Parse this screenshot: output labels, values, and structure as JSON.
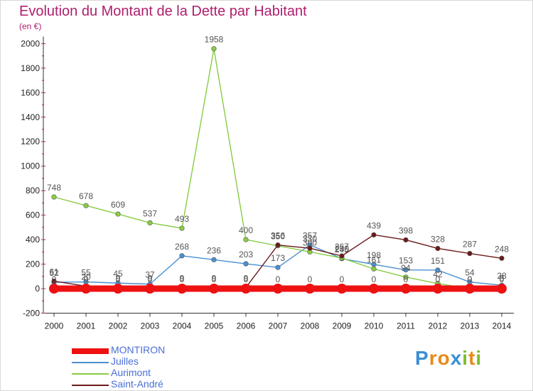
{
  "title": "Evolution du Montant de la Dette par Habitant",
  "subtitle": "(en €)",
  "brand": {
    "letters": [
      "P",
      "r",
      "o",
      "x",
      "i",
      "t",
      "i"
    ],
    "colors": [
      "#3b8fd6",
      "#e88a1a",
      "#e88a1a",
      "#3b8fd6",
      "#7cbc2d",
      "#e88a1a",
      "#7cbc2d"
    ]
  },
  "chart_data": {
    "type": "line",
    "x": [
      2000,
      2001,
      2002,
      2003,
      2004,
      2005,
      2006,
      2007,
      2008,
      2009,
      2010,
      2011,
      2012,
      2013,
      2014
    ],
    "ylim": [
      -200,
      2000
    ],
    "yticks": [
      -200,
      0,
      200,
      400,
      600,
      800,
      1000,
      1200,
      1400,
      1600,
      1800,
      2000
    ],
    "grid": false,
    "legend_position": "bottom-left",
    "series": [
      {
        "name": "MONTIRON",
        "color": "#ee1111",
        "values": [
          0,
          0,
          0,
          0,
          0,
          0,
          0,
          0,
          0,
          0,
          0,
          0,
          0,
          0,
          0
        ],
        "labels": [
          "0",
          "0",
          "0",
          "0",
          "0",
          "0",
          "0",
          "0",
          "0",
          "0",
          "0",
          "0",
          "0",
          "0",
          "0"
        ]
      },
      {
        "name": "Juilles",
        "color": "#4a90d0",
        "values": [
          52,
          55,
          45,
          37,
          268,
          236,
          203,
          173,
          357,
          245,
          198,
          153,
          151,
          54,
          28
        ],
        "labels": [
          "52",
          "55",
          "45",
          "37",
          "268",
          "236",
          "203",
          "173",
          "357",
          "245",
          "198",
          "153",
          "151",
          "54",
          "28"
        ]
      },
      {
        "name": "Aurimont",
        "color": "#88cc44",
        "values": [
          748,
          678,
          609,
          537,
          493,
          1958,
          400,
          350,
          300,
          250,
          161,
          94,
          42,
          0,
          8
        ],
        "labels": [
          "748",
          "678",
          "609",
          "537",
          "493",
          "1958",
          "400",
          "350",
          "300",
          "250",
          "161",
          "94",
          "42",
          "0",
          "8"
        ]
      },
      {
        "name": "Saint-André",
        "color": "#6b1a1a",
        "values": [
          61,
          20,
          9,
          9,
          9,
          9,
          9,
          356,
          330,
          267,
          439,
          398,
          328,
          287,
          248
        ],
        "labels": [
          "61",
          "20",
          "9",
          "9",
          "9",
          "9",
          "9",
          "356",
          "330",
          "267",
          "439",
          "398",
          "328",
          "287",
          "248"
        ]
      }
    ]
  }
}
